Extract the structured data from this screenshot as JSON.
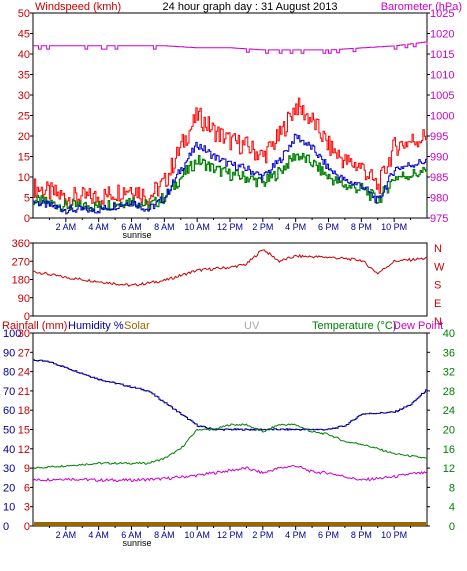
{
  "colors": {
    "wind": "#cc0000",
    "gust": "#ff0000",
    "avg": "#0000cc",
    "green": "#008000",
    "baro": "#cc00cc",
    "winddir": "#cc0000",
    "humidity": "#000099",
    "temperature": "#008000",
    "dewpoint": "#cc00cc",
    "rain": "#996600",
    "uv": "#aaaaaa",
    "solar": "#996600",
    "grid": "#000000",
    "background": "#ffffff"
  },
  "header": {
    "title": "24 hour graph day : 31 August 2013",
    "wind_label": "Windspeed (kmh)",
    "baro_label": "Barometer (hPa)"
  },
  "bottom_header": {
    "rain_label": "Rainfall (mm)",
    "humidity_label": "Humidity %",
    "solar_label": "Solar",
    "uv_label": "UV",
    "temp_label": "Temperature (°C)",
    "dew_label": "Dew Point"
  },
  "sunrise_label": "sunrise",
  "chart_data": [
    {
      "type": "line",
      "title": "24 hour graph day : 31 August 2013",
      "x_ticks": [
        "2 AM",
        "4 AM",
        "6 AM",
        "8 AM",
        "10 AM",
        "12 PM",
        "2 PM",
        "4 PM",
        "6 PM",
        "8 PM",
        "10 PM"
      ],
      "left_axis": {
        "label": "Windspeed (kmh)",
        "ticks": [
          0,
          5,
          10,
          15,
          20,
          25,
          30,
          35,
          40,
          45,
          50
        ],
        "range": [
          0,
          50
        ]
      },
      "right_axis": {
        "label": "Barometer (hPa)",
        "ticks": [
          975,
          980,
          985,
          990,
          995,
          1000,
          1005,
          1010,
          1015,
          1020,
          1025
        ],
        "range": [
          975,
          1025
        ]
      },
      "series": [
        {
          "name": "Windspeed (kmh)",
          "points": [
            [
              0,
              4
            ],
            [
              1,
              3
            ],
            [
              2,
              2
            ],
            [
              3,
              2
            ],
            [
              4,
              2
            ],
            [
              5,
              3
            ],
            [
              6,
              4
            ],
            [
              7,
              2
            ],
            [
              8,
              5
            ],
            [
              9,
              12
            ],
            [
              10,
              18
            ],
            [
              11,
              15
            ],
            [
              12,
              13
            ],
            [
              13,
              12
            ],
            [
              14,
              10
            ],
            [
              15,
              14
            ],
            [
              16,
              20
            ],
            [
              17,
              17
            ],
            [
              18,
              12
            ],
            [
              19,
              9
            ],
            [
              20,
              8
            ],
            [
              21,
              4
            ],
            [
              22,
              12
            ],
            [
              23,
              13
            ],
            [
              24,
              14
            ]
          ]
        },
        {
          "name": "Barometer (hPa)",
          "points": [
            [
              0,
              1017
            ],
            [
              2,
              1017
            ],
            [
              4,
              1017
            ],
            [
              6,
              1017
            ],
            [
              8,
              1017
            ],
            [
              10,
              1016.5
            ],
            [
              12,
              1016.5
            ],
            [
              14,
              1016
            ],
            [
              16,
              1016
            ],
            [
              18,
              1016
            ],
            [
              20,
              1016.5
            ],
            [
              22,
              1017
            ],
            [
              24,
              1018
            ]
          ]
        }
      ]
    },
    {
      "type": "line",
      "left_axis": {
        "ticks": [
          0,
          90,
          180,
          270,
          360
        ],
        "range": [
          0,
          360
        ]
      },
      "right_axis": {
        "ticks": [
          "N",
          "W",
          "S",
          "E",
          "N"
        ]
      },
      "series": [
        {
          "points": [
            [
              0,
              220
            ],
            [
              2,
              190
            ],
            [
              4,
              170
            ],
            [
              6,
              150
            ],
            [
              8,
              175
            ],
            [
              10,
              225
            ],
            [
              12,
              240
            ],
            [
              13,
              255
            ],
            [
              14,
              330
            ],
            [
              15,
              270
            ],
            [
              16,
              295
            ],
            [
              18,
              290
            ],
            [
              20,
              275
            ],
            [
              21,
              210
            ],
            [
              22,
              270
            ],
            [
              24,
              285
            ]
          ]
        }
      ]
    },
    {
      "type": "line",
      "x_ticks": [
        "2 AM",
        "4 AM",
        "6 AM",
        "8 AM",
        "10 AM",
        "12 PM",
        "2 PM",
        "4 PM",
        "6 PM",
        "8 PM",
        "10 PM"
      ],
      "left_axis_humidity": {
        "label": "Humidity %",
        "ticks": [
          0,
          10,
          20,
          30,
          40,
          50,
          60,
          70,
          80,
          90,
          100
        ],
        "range": [
          0,
          100
        ]
      },
      "left_axis_rain": {
        "label": "Rainfall (mm)",
        "ticks": [
          0,
          3,
          6,
          9,
          12,
          15,
          18,
          21,
          24,
          27,
          30
        ],
        "range": [
          0,
          30
        ]
      },
      "right_axis_temp": {
        "label": "Temperature (°C)",
        "ticks": [
          0,
          4,
          8,
          12,
          16,
          20,
          24,
          28,
          32,
          36,
          40
        ],
        "range": [
          0,
          40
        ]
      },
      "series": [
        {
          "name": "Humidity %",
          "points": [
            [
              0,
              86
            ],
            [
              1,
              85
            ],
            [
              2,
              82
            ],
            [
              4,
              76
            ],
            [
              6,
              72
            ],
            [
              7,
              70
            ],
            [
              8,
              64
            ],
            [
              9,
              58
            ],
            [
              10,
              52
            ],
            [
              11,
              50
            ],
            [
              12,
              50
            ],
            [
              14,
              50
            ],
            [
              16,
              50
            ],
            [
              18,
              50
            ],
            [
              19,
              52
            ],
            [
              20,
              58
            ],
            [
              22,
              59
            ],
            [
              23,
              63
            ],
            [
              24,
              71
            ]
          ]
        },
        {
          "name": "Temperature (°C)",
          "points": [
            [
              0,
              12
            ],
            [
              2,
              12.5
            ],
            [
              4,
              13
            ],
            [
              6,
              13
            ],
            [
              7,
              13
            ],
            [
              8,
              14
            ],
            [
              9,
              16
            ],
            [
              10,
              20
            ],
            [
              11,
              20
            ],
            [
              12,
              21
            ],
            [
              13,
              21
            ],
            [
              14,
              19.5
            ],
            [
              15,
              21
            ],
            [
              16,
              21
            ],
            [
              17,
              19.5
            ],
            [
              18,
              19
            ],
            [
              19,
              17.5
            ],
            [
              20,
              17
            ],
            [
              21,
              16
            ],
            [
              22,
              15
            ],
            [
              23,
              14.5
            ],
            [
              24,
              14
            ]
          ]
        },
        {
          "name": "Dew Point",
          "points": [
            [
              0,
              9.5
            ],
            [
              2,
              9.8
            ],
            [
              4,
              9.5
            ],
            [
              6,
              9.5
            ],
            [
              8,
              9.8
            ],
            [
              10,
              10.5
            ],
            [
              12,
              11.5
            ],
            [
              13,
              12
            ],
            [
              14,
              11
            ],
            [
              15,
              12
            ],
            [
              16,
              12.5
            ],
            [
              17,
              11.2
            ],
            [
              18,
              11
            ],
            [
              20,
              9.5
            ],
            [
              22,
              10.2
            ],
            [
              23,
              10.8
            ],
            [
              24,
              11
            ]
          ]
        },
        {
          "name": "Rainfall (mm)",
          "points": [
            [
              0,
              0
            ],
            [
              24,
              0
            ]
          ]
        }
      ]
    }
  ]
}
